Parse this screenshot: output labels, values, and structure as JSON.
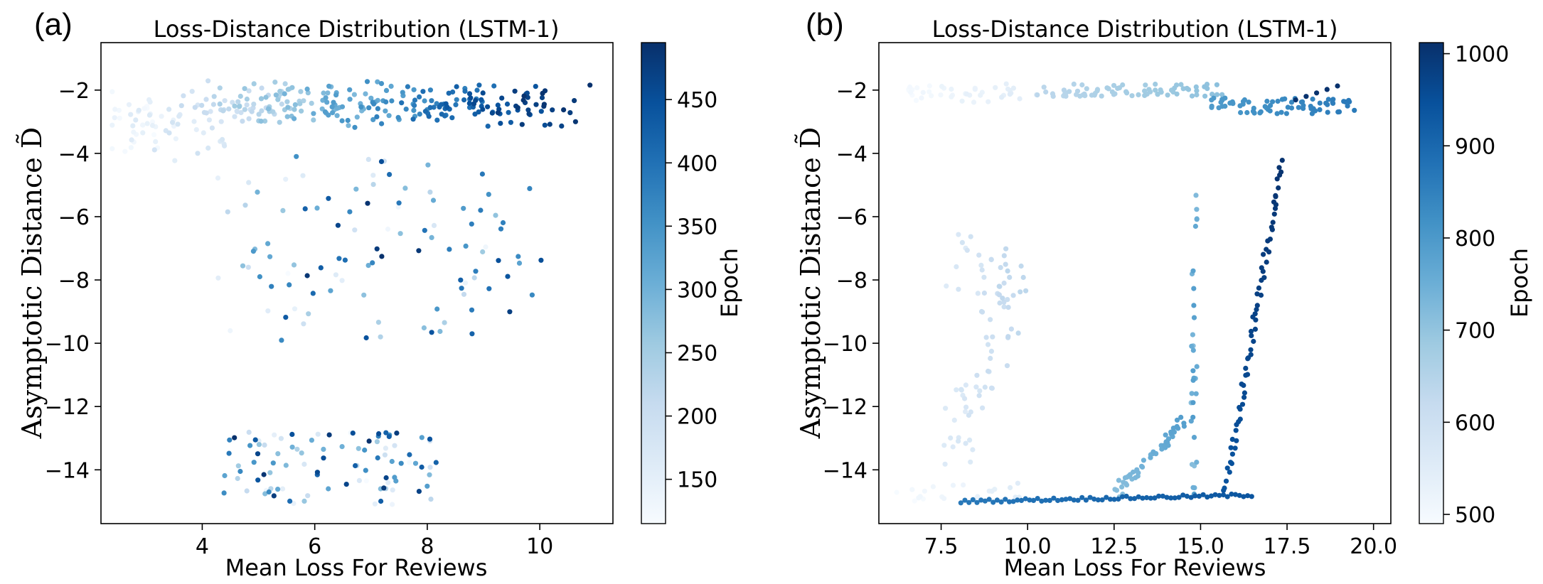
{
  "panels": [
    {
      "label": "(a)"
    },
    {
      "label": "(b)"
    }
  ],
  "chart_data": [
    {
      "type": "scatter",
      "panel": "(a)",
      "title": "Loss-Distance Distribution (LSTM-1)",
      "xlabel": "Mean Loss For Reviews",
      "ylabel": "Asymptotic Distance D̃",
      "xlim": [
        2.2,
        11.3
      ],
      "ylim": [
        -15.7,
        -0.5
      ],
      "xticks": [
        4,
        6,
        8,
        10
      ],
      "yticks": [
        -14,
        -12,
        -10,
        -8,
        -6,
        -4,
        -2
      ],
      "colorbar": {
        "label": "Epoch",
        "range": [
          115,
          495
        ],
        "ticks": [
          150,
          200,
          250,
          300,
          350,
          400,
          450
        ]
      },
      "colormap": [
        "#f7fbff",
        "#deebf7",
        "#c6dbef",
        "#9ecae1",
        "#6baed6",
        "#4292c6",
        "#2171b5",
        "#08519c",
        "#08306b"
      ],
      "generator": "sampled",
      "point_count": 520
    },
    {
      "type": "scatter",
      "panel": "(b)",
      "title": "Loss-Distance Distribution (LSTM-1)",
      "xlabel": "Mean Loss For Reviews",
      "ylabel": "Asymptotic Distance D̃",
      "xlim": [
        5.7,
        20.5
      ],
      "ylim": [
        -15.7,
        -0.5
      ],
      "xticks": [
        7.5,
        10.0,
        12.5,
        15.0,
        17.5,
        20.0
      ],
      "yticks": [
        -14,
        -12,
        -10,
        -8,
        -6,
        -4,
        -2
      ],
      "colorbar": {
        "label": "Epoch",
        "range": [
          490,
          1012
        ],
        "ticks": [
          500,
          600,
          700,
          800,
          900,
          1000
        ]
      },
      "colormap": [
        "#f7fbff",
        "#deebf7",
        "#c6dbef",
        "#9ecae1",
        "#6baed6",
        "#4292c6",
        "#2171b5",
        "#08519c",
        "#08306b"
      ],
      "generator": "trajectory",
      "point_count": 520
    }
  ]
}
